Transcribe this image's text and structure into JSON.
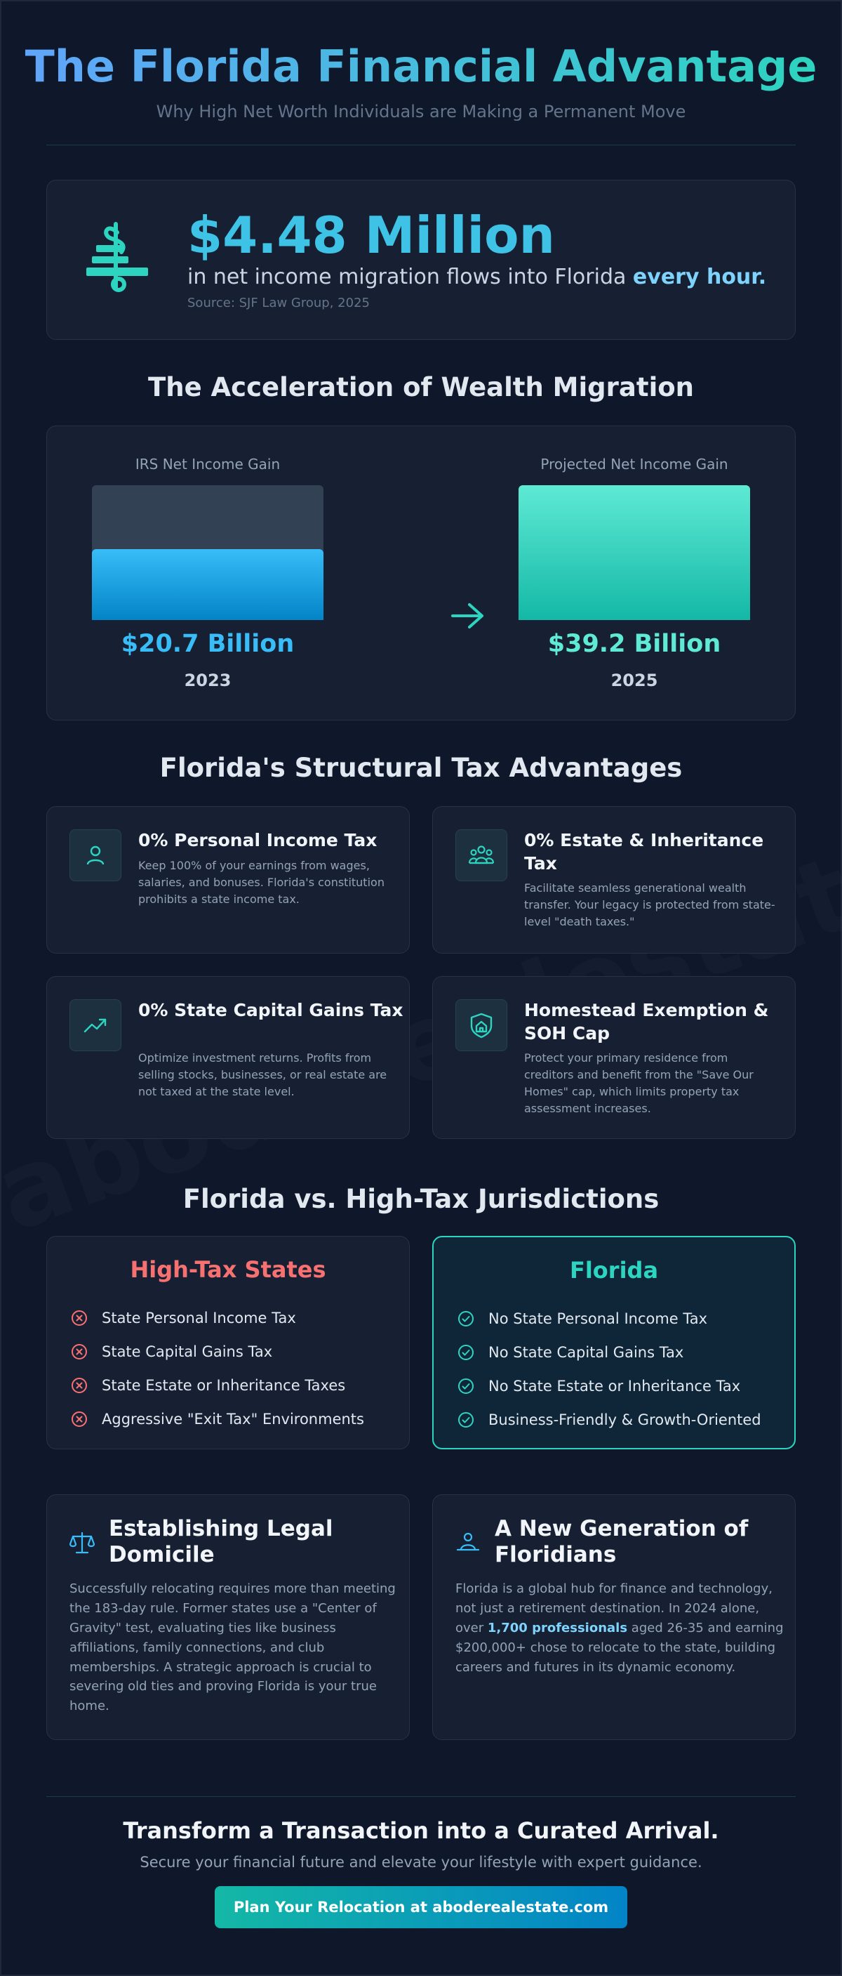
{
  "header": {
    "title": "The Florida Financial Advantage",
    "subtitle": "Why High Net Worth Individuals are Making a Permanent Move"
  },
  "watermark": "aboderealestate.com",
  "stat": {
    "icon": "finance-building-icon",
    "value": "$4.48 Million",
    "text_before": "in net income migration flows into Florida ",
    "text_emphasis": "every hour.",
    "source": "Source: SJF Law Group, 2025"
  },
  "migration": {
    "title": "The Acceleration of Wealth Migration",
    "arrow_icon": "arrow-right-icon",
    "bars": [
      {
        "label": "IRS Net Income Gain",
        "value_text": "$20.7 Billion",
        "value": 20.7,
        "year": "2023",
        "color": "#38bdf8"
      },
      {
        "label": "Projected Net Income Gain",
        "value_text": "$39.2 Billion",
        "value": 39.2,
        "year": "2025",
        "color": "#2dd4bf"
      }
    ]
  },
  "advantages": {
    "title": "Florida's Structural Tax Advantages",
    "items": [
      {
        "icon": "person-icon",
        "title": "0% Personal Income Tax",
        "desc": "Keep 100% of your earnings from wages, salaries, and bonuses. Florida's constitution prohibits a state income tax."
      },
      {
        "icon": "family-icon",
        "title": "0% Estate & Inheritance Tax",
        "desc": "Facilitate seamless generational wealth transfer. Your legacy is protected from state-level \"death taxes.\""
      },
      {
        "icon": "trending-up-icon",
        "title": "0% State Capital Gains Tax",
        "desc": "Optimize investment returns. Profits from selling stocks, businesses, or real estate are not taxed at the state level."
      },
      {
        "icon": "home-shield-icon",
        "title": "Homestead Exemption & SOH Cap",
        "desc": "Protect your primary residence from creditors and benefit from the \"Save Our Homes\" cap, which limits property tax assessment increases."
      }
    ]
  },
  "comparison": {
    "title": "Florida vs. High-Tax Jurisdictions",
    "high_tax": {
      "title": "High-Tax States",
      "color": "#f87171",
      "items": [
        "State Personal Income Tax",
        "State Capital Gains Tax",
        "State Estate or Inheritance Taxes",
        "Aggressive \"Exit Tax\" Environments"
      ]
    },
    "florida": {
      "title": "Florida",
      "color": "#2dd4bf",
      "items": [
        "No State Personal Income Tax",
        "No State Capital Gains Tax",
        "No State Estate or Inheritance Tax",
        "Business-Friendly & Growth-Oriented"
      ]
    }
  },
  "info": {
    "domicile": {
      "icon": "scales-icon",
      "title": "Establishing Legal Domicile",
      "body": "Successfully relocating requires more than meeting the 183-day rule. Former states use a \"Center of Gravity\" test, evaluating ties like business affiliations, family connections, and club memberships. A strategic approach is crucial to severing old ties and proving Florida is your true home."
    },
    "generation": {
      "icon": "user-group-icon",
      "title": "A New Generation of Floridians",
      "body_before": "Florida is a global hub for finance and technology, not just a retirement destination. In 2024 alone, over ",
      "body_emphasis": "1,700 professionals",
      "body_after": " aged 26-35 and earning $200,000+ chose to relocate to the state, building careers and futures in its dynamic economy."
    }
  },
  "cta": {
    "title": "Transform a Transaction into a Curated Arrival.",
    "subtitle": "Secure your financial future and elevate your lifestyle with expert guidance.",
    "button": "Plan Your Relocation at aboderealestate.com"
  }
}
